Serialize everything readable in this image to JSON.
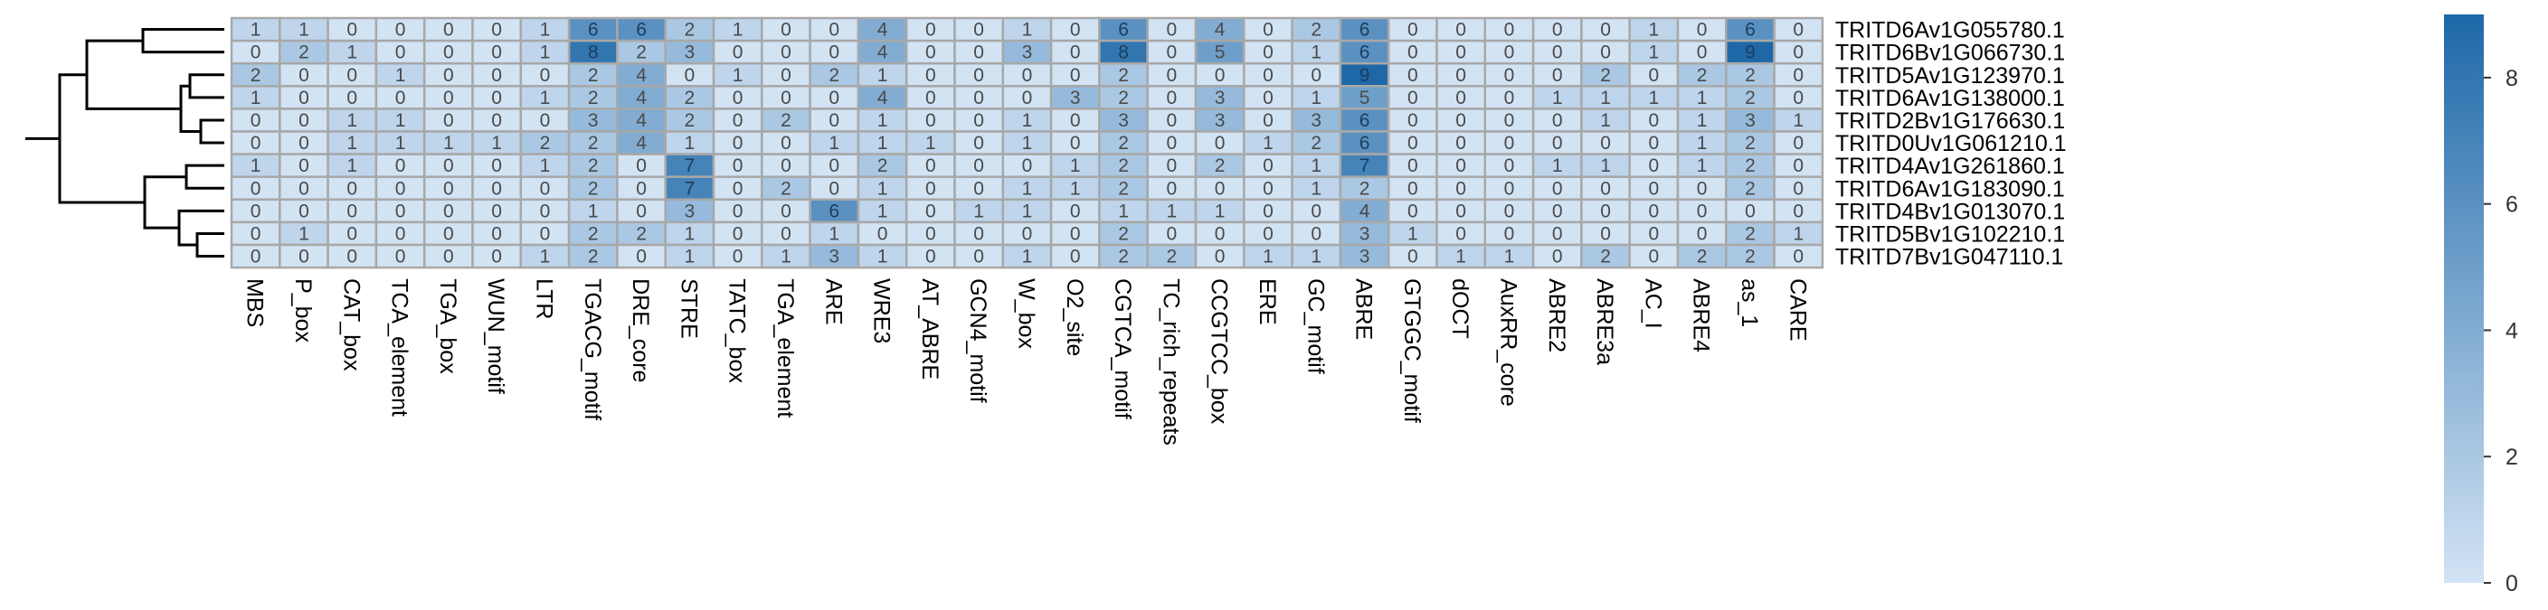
{
  "chart_data": {
    "type": "heatmap",
    "rows": [
      "TRITD6Av1G055780.1",
      "TRITD6Bv1G066730.1",
      "TRITD5Av1G123970.1",
      "TRITD6Av1G138000.1",
      "TRITD2Bv1G176630.1",
      "TRITD0Uv1G061210.1",
      "TRITD4Av1G261860.1",
      "TRITD6Av1G183090.1",
      "TRITD4Bv1G013070.1",
      "TRITD5Bv1G102210.1",
      "TRITD7Bv1G047110.1"
    ],
    "columns": [
      "MBS",
      "P_box",
      "CAT_box",
      "TCA_element",
      "TGA_box",
      "WUN_motif",
      "LTR",
      "TGACG_motif",
      "DRE_core",
      "STRE",
      "TATC_box",
      "TGA_element",
      "ARE",
      "WRE3",
      "AT_ABRE",
      "GCN4_motif",
      "W_box",
      "O2_site",
      "CGTCA_motif",
      "TC_rich_repeats",
      "CCGTCC_box",
      "ERE",
      "GC_motif",
      "ABRE",
      "GTGGC_motif",
      "dOCT",
      "AuxRR_core",
      "ABRE2",
      "ABRE3a",
      "AC_I",
      "ABRE4",
      "as_1",
      "CARE"
    ],
    "values": [
      [
        1,
        1,
        0,
        0,
        0,
        0,
        1,
        6,
        6,
        2,
        1,
        0,
        0,
        4,
        0,
        0,
        1,
        0,
        6,
        0,
        4,
        0,
        2,
        6,
        0,
        0,
        0,
        0,
        0,
        1,
        0,
        6,
        0
      ],
      [
        0,
        2,
        1,
        0,
        0,
        0,
        1,
        8,
        2,
        3,
        0,
        0,
        0,
        4,
        0,
        0,
        3,
        0,
        8,
        0,
        5,
        0,
        1,
        6,
        0,
        0,
        0,
        0,
        0,
        1,
        0,
        9,
        0
      ],
      [
        2,
        0,
        0,
        1,
        0,
        0,
        0,
        2,
        4,
        0,
        1,
        0,
        2,
        1,
        0,
        0,
        0,
        0,
        2,
        0,
        0,
        0,
        0,
        9,
        0,
        0,
        0,
        0,
        2,
        0,
        2,
        2,
        0
      ],
      [
        1,
        0,
        0,
        0,
        0,
        0,
        1,
        2,
        4,
        2,
        0,
        0,
        0,
        4,
        0,
        0,
        0,
        3,
        2,
        0,
        3,
        0,
        1,
        5,
        0,
        0,
        0,
        1,
        1,
        1,
        1,
        2,
        0
      ],
      [
        0,
        0,
        1,
        1,
        0,
        0,
        0,
        3,
        4,
        2,
        0,
        2,
        0,
        1,
        0,
        0,
        1,
        0,
        3,
        0,
        3,
        0,
        3,
        6,
        0,
        0,
        0,
        0,
        1,
        0,
        1,
        3,
        1
      ],
      [
        0,
        0,
        1,
        1,
        1,
        1,
        2,
        2,
        4,
        1,
        0,
        0,
        1,
        1,
        1,
        0,
        1,
        0,
        2,
        0,
        0,
        1,
        2,
        6,
        0,
        0,
        0,
        0,
        0,
        0,
        1,
        2,
        0
      ],
      [
        1,
        0,
        1,
        0,
        0,
        0,
        1,
        2,
        0,
        7,
        0,
        0,
        0,
        2,
        0,
        0,
        0,
        1,
        2,
        0,
        2,
        0,
        1,
        7,
        0,
        0,
        0,
        1,
        1,
        0,
        1,
        2,
        0
      ],
      [
        0,
        0,
        0,
        0,
        0,
        0,
        0,
        2,
        0,
        7,
        0,
        2,
        0,
        1,
        0,
        0,
        1,
        1,
        2,
        0,
        0,
        0,
        1,
        2,
        0,
        0,
        0,
        0,
        0,
        0,
        0,
        2,
        0
      ],
      [
        0,
        0,
        0,
        0,
        0,
        0,
        0,
        1,
        0,
        3,
        0,
        0,
        6,
        1,
        0,
        1,
        1,
        0,
        1,
        1,
        1,
        0,
        0,
        4,
        0,
        0,
        0,
        0,
        0,
        0,
        0,
        0,
        0
      ],
      [
        0,
        1,
        0,
        0,
        0,
        0,
        0,
        2,
        2,
        1,
        0,
        0,
        1,
        0,
        0,
        0,
        0,
        0,
        2,
        0,
        0,
        0,
        0,
        3,
        1,
        0,
        0,
        0,
        0,
        0,
        0,
        2,
        1
      ],
      [
        0,
        0,
        0,
        0,
        0,
        0,
        1,
        2,
        0,
        1,
        0,
        1,
        3,
        1,
        0,
        0,
        1,
        0,
        2,
        2,
        0,
        1,
        1,
        3,
        0,
        1,
        1,
        0,
        2,
        0,
        2,
        2,
        0
      ]
    ],
    "colorscale": {
      "low": "#d2e3f4",
      "high": "#1e68a8",
      "min": 0,
      "max": 9
    },
    "legend": {
      "placement": "right",
      "ticks": [
        0,
        2,
        4,
        6,
        8
      ]
    },
    "dendrogram": "rows"
  }
}
